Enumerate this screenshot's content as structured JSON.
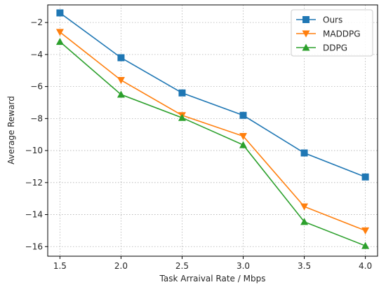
{
  "chart_data": {
    "type": "line",
    "xlabel": "Task Arraival Rate / Mbps",
    "ylabel": "Average Reward",
    "x": [
      1.5,
      2.0,
      2.5,
      3.0,
      3.5,
      4.0
    ],
    "xticks": [
      "1.5",
      "2.0",
      "2.5",
      "3.0",
      "3.5",
      "4.0"
    ],
    "yticks": [
      "−16",
      "−14",
      "−12",
      "−10",
      "−8",
      "−6",
      "−4",
      "−2"
    ],
    "ytick_values": [
      -16,
      -14,
      -12,
      -10,
      -8,
      -6,
      -4,
      -2
    ],
    "xlim": [
      1.4,
      4.1
    ],
    "ylim": [
      -16.6,
      -0.9
    ],
    "grid": true,
    "legend_position": "top-right",
    "series": [
      {
        "name": "Ours",
        "color": "#1f77b4",
        "marker": "square",
        "values": [
          -1.4,
          -4.2,
          -6.4,
          -7.8,
          -10.15,
          -11.65
        ]
      },
      {
        "name": "MADDPG",
        "color": "#ff7f0e",
        "marker": "triangle-down",
        "values": [
          -2.6,
          -5.6,
          -7.8,
          -9.1,
          -13.5,
          -15.0
        ]
      },
      {
        "name": "DDPG",
        "color": "#2ca02c",
        "marker": "triangle-up",
        "values": [
          -3.2,
          -6.5,
          -7.95,
          -9.65,
          -14.45,
          -15.95
        ]
      }
    ]
  }
}
